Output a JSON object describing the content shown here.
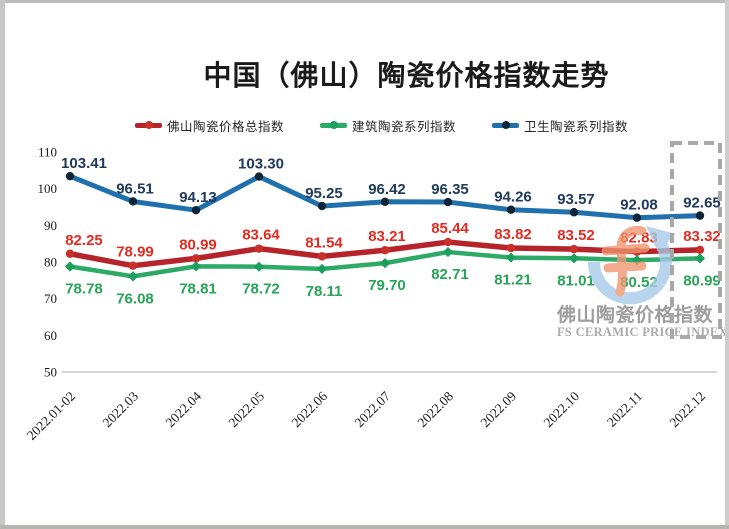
{
  "page_title": "中国（佛山）陶瓷价格指数走势",
  "watermark": {
    "cn": "佛山陶瓷价格指数",
    "en": "FS CERAMIC PRICE INDEX"
  },
  "chart_data": {
    "type": "line",
    "title": "中国（佛山）陶瓷价格指数走势",
    "categories": [
      "2022.01-02",
      "2022.03",
      "2022.04",
      "2022.05",
      "2022.06",
      "2022.07",
      "2022.08",
      "2022.09",
      "2022.10",
      "2022.11",
      "2022.12"
    ],
    "series": [
      {
        "name": "佛山陶瓷价格总指数",
        "color": "#b5242a",
        "label_color": "#e52a20",
        "marker_color": "#c93029",
        "values": [
          82.25,
          78.99,
          80.99,
          83.64,
          81.54,
          83.21,
          85.44,
          83.82,
          83.52,
          82.83,
          83.32
        ]
      },
      {
        "name": "建筑陶瓷系列指数",
        "color": "#2caa66",
        "label_color": "#27a456",
        "marker_color": "#1c9e5e",
        "values": [
          78.78,
          76.08,
          78.81,
          78.72,
          78.11,
          79.7,
          82.71,
          81.21,
          81.01,
          80.52,
          80.99
        ]
      },
      {
        "name": "卫生陶瓷系列指数",
        "color": "#2070ae",
        "label_color": "#20395c",
        "marker_color": "#0e2537",
        "values": [
          103.41,
          96.51,
          94.13,
          103.3,
          95.25,
          96.42,
          96.35,
          94.26,
          93.57,
          92.08,
          92.65
        ]
      }
    ],
    "y_ticks": [
      110,
      100,
      90,
      80,
      70,
      60,
      50
    ],
    "ylim": [
      50,
      110
    ],
    "grid": false,
    "legend_position": "top",
    "highlight_last_category": "2022.12",
    "accent_colors": {
      "highlight_box": "#a8a8a8",
      "axis_line": "#c9c9c9",
      "axis_text": "#1a1a1a",
      "watermark_gray": "#a0a0a0",
      "logo_blue": "#a6c9e8",
      "logo_orange": "#f0946f"
    }
  }
}
